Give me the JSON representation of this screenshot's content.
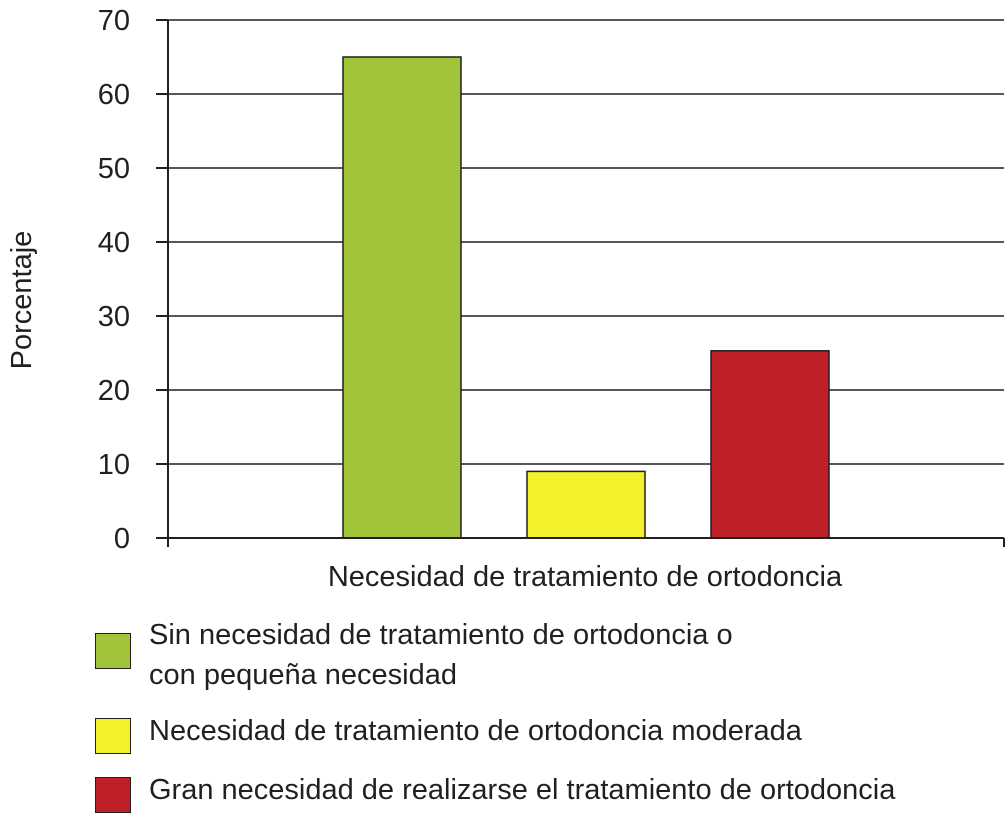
{
  "chart_data": {
    "type": "bar",
    "title": "",
    "xlabel": "Necesidad de tratamiento de ortodoncia",
    "ylabel": "Porcentaje",
    "ylim": [
      0,
      70
    ],
    "yticks": [
      0,
      10,
      20,
      30,
      40,
      50,
      60,
      70
    ],
    "grid": true,
    "legend_position": "bottom",
    "series": [
      {
        "name": "Sin necesidad de tratamiento de ortodoncia o\ncon pequeña necesidad",
        "value": 65,
        "color": "#a0c43a"
      },
      {
        "name": "Necesidad de tratamiento de ortodoncia moderada",
        "value": 9,
        "color": "#f4f02c"
      },
      {
        "name": "Gran necesidad de realizarse el tratamiento de ortodoncia",
        "value": 25.3,
        "color": "#bd2026"
      }
    ]
  }
}
